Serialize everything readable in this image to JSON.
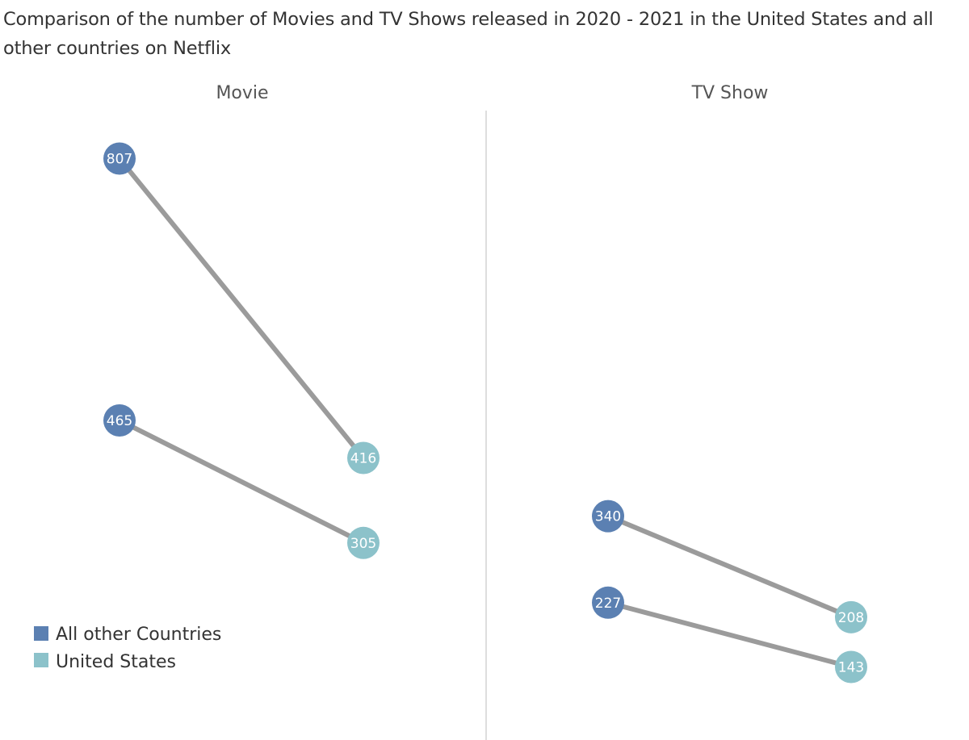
{
  "chart_data": {
    "type": "line",
    "title": "Comparison of the number of Movies and TV Shows released in 2020 - 2021 in the United States and all other countries on Netflix",
    "panels": [
      "Movie",
      "TV Show"
    ],
    "legend": {
      "placement": "bottom-left",
      "items": [
        {
          "name": "All other Countries",
          "color": "#5b80b2"
        },
        {
          "name": "United States",
          "color": "#8cc2ca"
        }
      ]
    },
    "line_color": "#9b9b9b",
    "divider_color": "#d4d4d4",
    "grid": false,
    "ylim": [
      0,
      900
    ],
    "pairs": [
      {
        "panel": "Movie",
        "from_series": "All other Countries",
        "from_value": 807,
        "to_series": "United States",
        "to_value": 416
      },
      {
        "panel": "Movie",
        "from_series": "All other Countries",
        "from_value": 465,
        "to_series": "United States",
        "to_value": 305
      },
      {
        "panel": "TV Show",
        "from_series": "All other Countries",
        "from_value": 340,
        "to_series": "United States",
        "to_value": 208
      },
      {
        "panel": "TV Show",
        "from_series": "All other Countries",
        "from_value": 227,
        "to_series": "United States",
        "to_value": 143
      }
    ]
  }
}
